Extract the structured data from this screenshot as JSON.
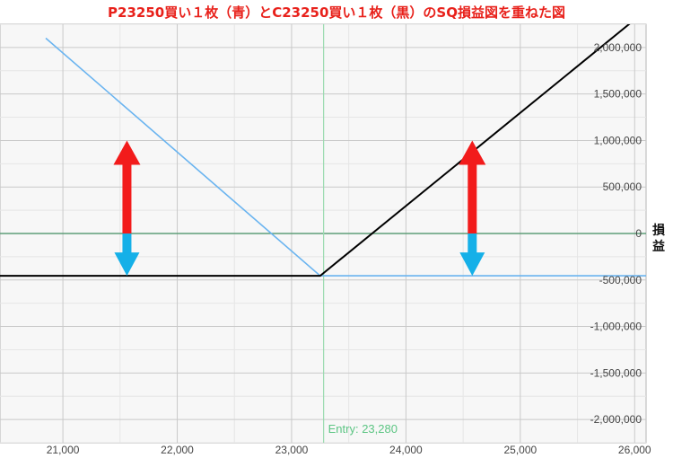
{
  "chart_data": {
    "type": "line",
    "title": "P23250買い１枚（青）とC23250買い１枚（黒）のSQ損益図を重ねた図",
    "ylabel": "損益",
    "xlim": [
      20450,
      26100
    ],
    "ylim": [
      -2250000,
      2250000
    ],
    "x_ticks": [
      21000,
      22000,
      23000,
      24000,
      25000,
      26000
    ],
    "x_tick_labels": [
      "21,000",
      "22,000",
      "23,000",
      "24,000",
      "25,000",
      "26,000"
    ],
    "y_ticks": [
      2000000,
      1500000,
      1000000,
      500000,
      0,
      -500000,
      -1000000,
      -1500000,
      -2000000
    ],
    "y_tick_labels": [
      "2,000,000",
      "1,500,000",
      "1,000,000",
      "500,000",
      "0",
      "-500,000",
      "-1,000,000",
      "-1,500,000",
      "-2,000,000"
    ],
    "grid": true,
    "series": [
      {
        "color": "#6ab4f0",
        "points": [
          [
            20850,
            2100000
          ],
          [
            23250,
            -455000
          ],
          [
            26100,
            -455000
          ]
        ]
      },
      {
        "color": "#000000",
        "points": [
          [
            20450,
            -455000
          ],
          [
            23250,
            -455000
          ],
          [
            26100,
            2400000
          ]
        ]
      }
    ],
    "zero_line_color": "#5e9e78",
    "entry": {
      "value": 23280,
      "label": "Entry: 23,280",
      "color": "#5cc583"
    },
    "arrows": [
      {
        "x": 21560,
        "y_top": 1000000,
        "y_split": 0,
        "y_bottom": -455000,
        "up_color": "#f21b1b",
        "down_color": "#15b0e8"
      },
      {
        "x": 24580,
        "y_top": 1000000,
        "y_split": 0,
        "y_bottom": -455000,
        "up_color": "#f21b1b",
        "down_color": "#15b0e8"
      }
    ]
  }
}
